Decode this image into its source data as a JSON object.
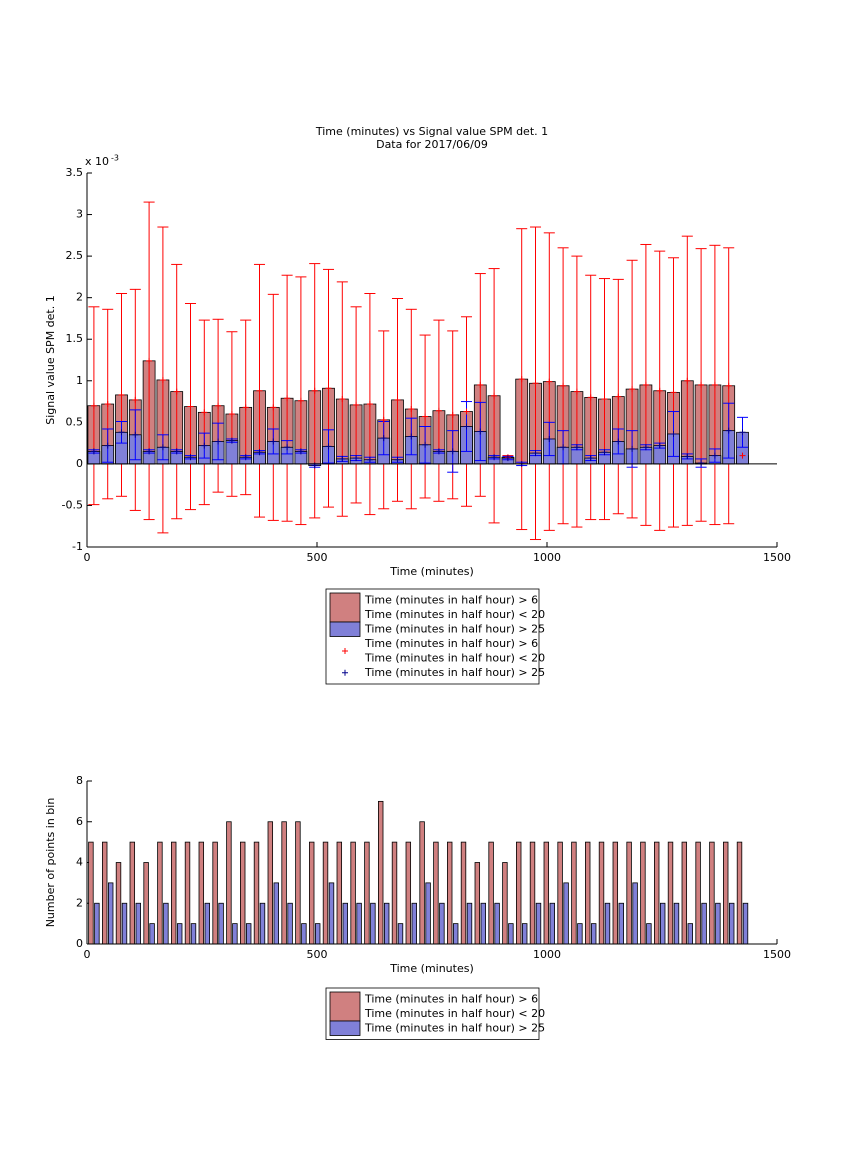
{
  "chart_data": [
    {
      "type": "bar",
      "barmode": "overlay",
      "title": "Time (minutes) vs Signal value SPM det. 1",
      "subtitle": "Data for 2017/06/09",
      "x_label": "Time (minutes)",
      "y_label": "Signal value SPM det. 1",
      "y_multiplier": {
        "text": "x 10",
        "exponent": "-3"
      },
      "xlim": [
        0,
        1500
      ],
      "xticks": [
        0,
        500,
        1000,
        1500
      ],
      "ylim": [
        -1,
        3.5
      ],
      "yticks": [
        -1,
        -0.5,
        0,
        0.5,
        1,
        1.5,
        2,
        2.5,
        3,
        3.5
      ],
      "legend": "bottom",
      "x": [
        15,
        45,
        75,
        105,
        135,
        165,
        195,
        225,
        255,
        285,
        315,
        345,
        375,
        405,
        435,
        465,
        495,
        525,
        555,
        585,
        615,
        645,
        675,
        705,
        735,
        765,
        795,
        825,
        855,
        885,
        915,
        945,
        975,
        1005,
        1035,
        1065,
        1095,
        1125,
        1155,
        1185,
        1215,
        1245,
        1275,
        1305,
        1335,
        1365,
        1395,
        1425
      ],
      "series": [
        {
          "name": [
            "Time (minutes in half hour) > 6",
            "Time (minutes in half hour) < 20"
          ],
          "kind": "bar",
          "color": "#d08080",
          "error_color": "#ff0000",
          "values": [
            0.7,
            0.72,
            0.83,
            0.77,
            1.24,
            1.01,
            0.87,
            0.69,
            0.62,
            0.7,
            0.6,
            0.68,
            0.88,
            0.68,
            0.79,
            0.76,
            0.88,
            0.91,
            0.78,
            0.71,
            0.72,
            0.53,
            0.77,
            0.66,
            0.57,
            0.64,
            0.59,
            0.63,
            0.95,
            0.82,
            0.08,
            1.02,
            0.97,
            0.99,
            0.94,
            0.87,
            0.8,
            0.78,
            0.81,
            0.9,
            0.95,
            0.88,
            0.86,
            1.0,
            0.95,
            0.95,
            0.94,
            0.1
          ],
          "errors": [
            1.19,
            1.14,
            1.22,
            1.33,
            1.91,
            1.84,
            1.53,
            1.24,
            1.11,
            1.04,
            0.99,
            1.05,
            1.52,
            1.36,
            1.48,
            1.49,
            1.53,
            1.43,
            1.41,
            1.18,
            1.33,
            1.07,
            1.22,
            1.2,
            0.98,
            1.09,
            1.01,
            1.14,
            1.34,
            1.53,
            0.02,
            1.81,
            1.88,
            1.79,
            1.66,
            1.63,
            1.47,
            1.45,
            1.41,
            1.55,
            1.69,
            1.68,
            1.62,
            1.74,
            1.64,
            1.68,
            1.66,
            0.04
          ]
        },
        {
          "name": "Time (minutes in half hour) > 25",
          "kind": "bar",
          "color": "#8080d8",
          "error_color": "#0000ff",
          "values": [
            0.15,
            0.22,
            0.38,
            0.35,
            0.15,
            0.2,
            0.15,
            0.08,
            0.22,
            0.27,
            0.28,
            0.08,
            0.14,
            0.27,
            0.2,
            0.15,
            -0.02,
            0.21,
            0.06,
            0.07,
            0.05,
            0.31,
            0.05,
            0.33,
            0.23,
            0.15,
            0.15,
            0.45,
            0.39,
            0.08,
            0.07,
            0.0,
            0.13,
            0.3,
            0.2,
            0.2,
            0.07,
            0.14,
            0.27,
            0.18,
            0.2,
            0.22,
            0.36,
            0.09,
            0.01,
            0.1,
            0.4,
            0.38
          ],
          "errors": [
            0.02,
            0.2,
            0.13,
            0.3,
            0.02,
            0.15,
            0.02,
            0.02,
            0.15,
            0.22,
            0.02,
            0.02,
            0.02,
            0.15,
            0.08,
            0.02,
            0.02,
            0.2,
            0.03,
            0.03,
            0.03,
            0.2,
            0.03,
            0.22,
            0.22,
            0.02,
            0.25,
            0.3,
            0.35,
            0.02,
            0.02,
            0.02,
            0.03,
            0.2,
            0.2,
            0.03,
            0.03,
            0.03,
            0.15,
            0.22,
            0.03,
            0.03,
            0.27,
            0.03,
            0.05,
            0.08,
            0.33,
            0.18
          ]
        },
        {
          "name": [
            "Time (minutes in half hour) > 6",
            "Time (minutes in half hour) < 20"
          ],
          "kind": "plus",
          "color": "#ff0000",
          "values": [
            0.7,
            0.72,
            0.83,
            0.77,
            1.24,
            1.01,
            0.87,
            0.69,
            0.62,
            0.7,
            0.6,
            0.68,
            0.88,
            0.68,
            0.79,
            0.76,
            0.88,
            0.91,
            0.78,
            0.71,
            0.72,
            0.53,
            0.77,
            0.66,
            0.57,
            0.64,
            0.59,
            0.63,
            0.95,
            0.82,
            0.08,
            1.02,
            0.97,
            0.99,
            0.94,
            0.87,
            0.8,
            0.78,
            0.81,
            0.9,
            0.95,
            0.88,
            0.86,
            1.0,
            0.95,
            0.95,
            0.94,
            0.1
          ]
        },
        {
          "name": "Time (minutes in half hour) > 25",
          "kind": "plus",
          "color": "#00008b",
          "values": [
            0.15,
            0.22,
            0.38,
            0.35,
            0.15,
            0.2,
            0.15,
            0.08,
            0.22,
            0.27,
            0.28,
            0.08,
            0.14,
            0.27,
            0.2,
            0.15,
            -0.02,
            0.21,
            0.06,
            0.07,
            0.05,
            0.31,
            0.05,
            0.33,
            0.23,
            0.15,
            0.15,
            0.45,
            0.39,
            0.08,
            0.07,
            0.0,
            0.13,
            0.3,
            0.2,
            0.2,
            0.07,
            0.14,
            0.27,
            0.18,
            0.2,
            0.22,
            0.36,
            0.09,
            0.01,
            0.1,
            0.4,
            0.38
          ]
        }
      ]
    },
    {
      "type": "bar",
      "barmode": "group",
      "x_label": "Time (minutes)",
      "y_label": "Number of points in bin",
      "xlim": [
        0,
        1500
      ],
      "xticks": [
        0,
        500,
        1000,
        1500
      ],
      "ylim": [
        0,
        8
      ],
      "yticks": [
        0,
        2,
        4,
        6,
        8
      ],
      "legend": "bottom",
      "x": [
        15,
        45,
        75,
        105,
        135,
        165,
        195,
        225,
        255,
        285,
        315,
        345,
        375,
        405,
        435,
        465,
        495,
        525,
        555,
        585,
        615,
        645,
        675,
        705,
        735,
        765,
        795,
        825,
        855,
        885,
        915,
        945,
        975,
        1005,
        1035,
        1065,
        1095,
        1125,
        1155,
        1185,
        1215,
        1245,
        1275,
        1305,
        1335,
        1365,
        1395,
        1425
      ],
      "series": [
        {
          "name": [
            "Time (minutes in half hour) > 6",
            "Time (minutes in half hour) < 20"
          ],
          "kind": "bar",
          "color": "#d08080",
          "values": [
            5,
            5,
            4,
            5,
            4,
            5,
            5,
            5,
            5,
            5,
            6,
            5,
            5,
            6,
            6,
            6,
            5,
            5,
            5,
            5,
            5,
            7,
            5,
            5,
            6,
            5,
            5,
            5,
            4,
            5,
            4,
            5,
            5,
            5,
            5,
            5,
            5,
            5,
            5,
            5,
            5,
            5,
            5,
            5,
            5,
            5,
            5,
            5
          ]
        },
        {
          "name": "Time (minutes in half hour) > 25",
          "kind": "bar",
          "color": "#8080d8",
          "values": [
            2,
            3,
            2,
            2,
            1,
            2,
            1,
            1,
            2,
            2,
            1,
            1,
            2,
            3,
            2,
            1,
            1,
            3,
            2,
            2,
            2,
            2,
            1,
            2,
            3,
            2,
            1,
            2,
            2,
            2,
            1,
            1,
            2,
            2,
            3,
            1,
            1,
            2,
            2,
            3,
            1,
            2,
            2,
            1,
            2,
            2,
            2,
            2
          ]
        }
      ]
    }
  ]
}
